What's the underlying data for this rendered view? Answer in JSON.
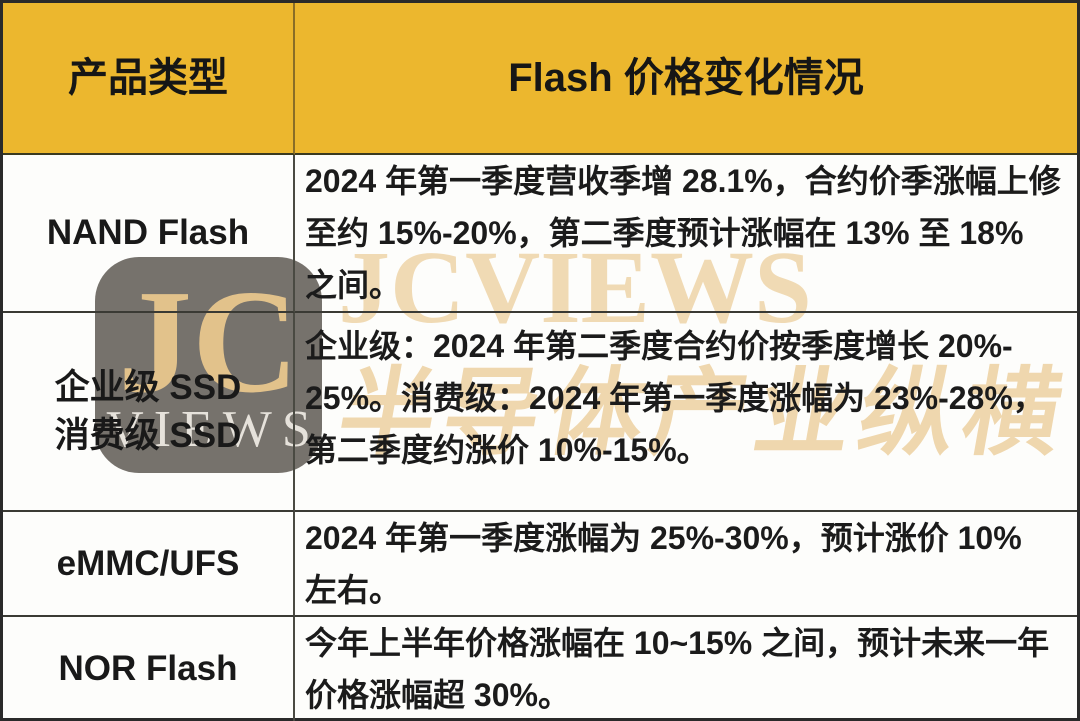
{
  "table": {
    "header": {
      "col1": "产品类型",
      "col2": "Flash 价格变化情况"
    },
    "rows": [
      {
        "product_lines": [
          "NAND Flash"
        ],
        "detail_lines": [
          "2024 年第一季度营收季增 28.1%，合约价季涨幅上修",
          "至约 15%-20%，第二季度预计涨幅在 13% 至 18%",
          "之间。"
        ]
      },
      {
        "product_lines": [
          "企业级 SSD",
          "消费级 SSD"
        ],
        "detail_lines": [
          "企业级：2024 年第二季度合约价按季度增长 20%-",
          "25%。消费级：2024 年第一季度涨幅为 23%-28%，",
          "第二季度约涨价 10%-15%。"
        ]
      },
      {
        "product_lines": [
          "eMMC/UFS"
        ],
        "detail_lines": [
          "2024 年第一季度涨幅为 25%-30%，预计涨价 10%",
          "左右。"
        ]
      },
      {
        "product_lines": [
          "NOR Flash"
        ],
        "detail_lines": [
          "今年上半年价格涨幅在 10~15% 之间，预计未来一年",
          "价格涨幅超 30%。"
        ]
      }
    ]
  },
  "watermark": {
    "logo_top": "JC",
    "logo_bottom": "VIEWS",
    "brand_en": "JCVIEWS",
    "brand_cn": "半导体产业纵横"
  },
  "colors": {
    "header_bg": "#ecb72e",
    "header_divider": "#8a6d26",
    "grid_border": "#4a4a42",
    "watermark_gold": "#eccd99",
    "logo_bg": "rgba(84,79,73,0.80)",
    "body_text": "#1b1b1b"
  }
}
